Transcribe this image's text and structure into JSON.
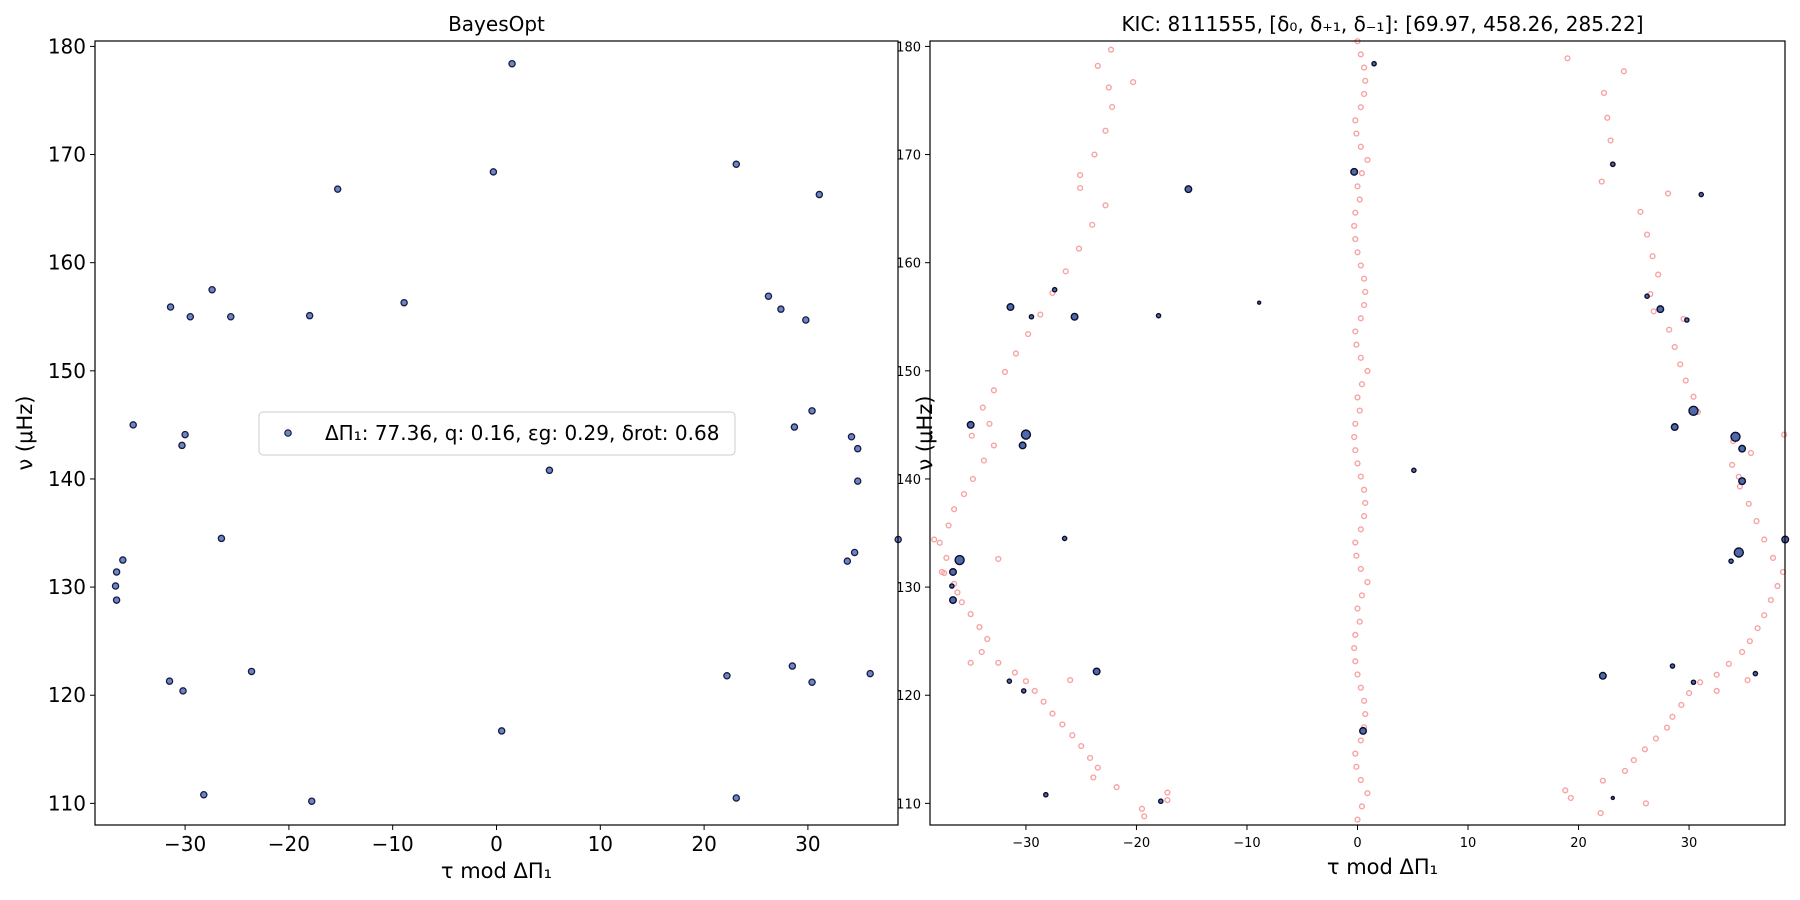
{
  "chart_data": [
    {
      "type": "scatter",
      "title": "BayesOpt",
      "xlabel": "τ mod ΔΠ₁",
      "ylabel": "ν (μHz)",
      "xlim": [
        -38.68,
        38.68
      ],
      "ylim": [
        108,
        180.5
      ],
      "xticks": [
        -30,
        -20,
        -10,
        0,
        10,
        20,
        30
      ],
      "xtick_labels": [
        "−30",
        "−20",
        "−10",
        "0",
        "10",
        "20",
        "30"
      ],
      "yticks": [
        110,
        120,
        130,
        140,
        150,
        160,
        170,
        180
      ],
      "ytick_labels": [
        "110",
        "120",
        "130",
        "140",
        "150",
        "160",
        "170",
        "180"
      ],
      "grid": false,
      "legend": {
        "placement": "center-left",
        "label": "ΔΠ₁: 77.36, q: 0.16, εg: 0.29, δrot: 0.68"
      },
      "colors": {
        "marker_fill": "#6b86c6",
        "marker_edge": "#1a1a40"
      },
      "series": [
        {
          "name": "ΔΠ₁: 77.36, q: 0.16, εg: 0.29, δrot: 0.68",
          "points": [
            [
              1.5,
              178.4
            ],
            [
              -15.3,
              166.8
            ],
            [
              -0.3,
              168.4
            ],
            [
              23.1,
              169.1
            ],
            [
              31.1,
              166.3
            ],
            [
              -27.4,
              157.5
            ],
            [
              -31.4,
              155.9
            ],
            [
              -29.5,
              155.0
            ],
            [
              -25.6,
              155.0
            ],
            [
              -18.0,
              155.1
            ],
            [
              -8.9,
              156.3
            ],
            [
              26.2,
              156.9
            ],
            [
              27.4,
              155.7
            ],
            [
              29.8,
              154.7
            ],
            [
              30.4,
              146.3
            ],
            [
              28.7,
              144.8
            ],
            [
              -35.0,
              145.0
            ],
            [
              -30.0,
              144.1
            ],
            [
              -30.3,
              143.1
            ],
            [
              5.1,
              140.8
            ],
            [
              34.2,
              143.9
            ],
            [
              34.8,
              142.8
            ],
            [
              34.8,
              139.8
            ],
            [
              38.7,
              134.4
            ],
            [
              34.5,
              133.2
            ],
            [
              33.8,
              132.4
            ],
            [
              -26.5,
              134.5
            ],
            [
              -36.0,
              132.5
            ],
            [
              -36.6,
              131.4
            ],
            [
              -36.7,
              130.1
            ],
            [
              -36.6,
              128.8
            ],
            [
              -23.6,
              122.2
            ],
            [
              -31.5,
              121.3
            ],
            [
              -30.2,
              120.4
            ],
            [
              0.5,
              116.7
            ],
            [
              22.2,
              121.8
            ],
            [
              28.5,
              122.7
            ],
            [
              30.4,
              121.2
            ],
            [
              36.0,
              122.0
            ],
            [
              -28.2,
              110.8
            ],
            [
              -17.8,
              110.2
            ],
            [
              23.1,
              110.5
            ]
          ]
        }
      ]
    },
    {
      "type": "scatter",
      "title": "KIC: 8111555, [δ₀, δ₊₁, δ₋₁]: [69.97, 458.26, 285.22]",
      "xlabel": "τ mod ΔΠ₁",
      "ylabel": "ν (μHz)",
      "xlim": [
        -38.68,
        38.68
      ],
      "ylim": [
        108,
        180.5
      ],
      "xticks": [
        -30,
        -20,
        -10,
        0,
        10,
        20,
        30
      ],
      "xtick_labels": [
        "−30",
        "−20",
        "−10",
        "0",
        "10",
        "20",
        "30"
      ],
      "yticks": [
        110,
        120,
        130,
        140,
        150,
        160,
        170,
        180
      ],
      "ytick_labels": [
        "110",
        "120",
        "130",
        "140",
        "150",
        "160",
        "170",
        "180"
      ],
      "grid": false,
      "colors": {
        "observed_fill": "#4e6aad",
        "observed_edge": "#0d0d2a",
        "model": "#f7a3a3"
      },
      "series": [
        {
          "name": "observed",
          "points": [
            [
              1.5,
              178.4,
              1
            ],
            [
              -15.3,
              166.8,
              2
            ],
            [
              -0.3,
              168.4,
              2
            ],
            [
              23.1,
              169.1,
              1
            ],
            [
              31.1,
              166.3,
              1
            ],
            [
              -27.4,
              157.5,
              1
            ],
            [
              -31.4,
              155.9,
              2
            ],
            [
              -29.5,
              155.0,
              1
            ],
            [
              -25.6,
              155.0,
              2
            ],
            [
              -18.0,
              155.1,
              1
            ],
            [
              -8.9,
              156.3,
              0.5
            ],
            [
              26.2,
              156.9,
              1
            ],
            [
              27.4,
              155.7,
              2
            ],
            [
              29.8,
              154.7,
              1
            ],
            [
              30.4,
              146.3,
              3
            ],
            [
              28.7,
              144.8,
              2
            ],
            [
              -35.0,
              145.0,
              2
            ],
            [
              -30.0,
              144.1,
              3
            ],
            [
              -30.3,
              143.1,
              2
            ],
            [
              5.1,
              140.8,
              1
            ],
            [
              34.2,
              143.9,
              3
            ],
            [
              34.8,
              142.8,
              2
            ],
            [
              34.8,
              139.8,
              2
            ],
            [
              38.7,
              134.4,
              2
            ],
            [
              34.5,
              133.2,
              3
            ],
            [
              33.8,
              132.4,
              1
            ],
            [
              -26.5,
              134.5,
              1
            ],
            [
              -36.0,
              132.5,
              3
            ],
            [
              -36.6,
              131.4,
              2
            ],
            [
              -36.7,
              130.1,
              1
            ],
            [
              -36.6,
              128.8,
              2
            ],
            [
              -23.6,
              122.2,
              2
            ],
            [
              -31.5,
              121.3,
              1
            ],
            [
              -30.2,
              120.4,
              1
            ],
            [
              0.5,
              116.7,
              2
            ],
            [
              22.2,
              121.8,
              2
            ],
            [
              28.5,
              122.7,
              1
            ],
            [
              30.4,
              121.2,
              1
            ],
            [
              36.0,
              122.0,
              1
            ],
            [
              -28.2,
              110.8,
              1
            ],
            [
              -17.8,
              110.2,
              1
            ],
            [
              23.1,
              110.5,
              0.5
            ]
          ]
        },
        {
          "name": "model",
          "center_x": [
            0.0,
            0.4,
            0.9,
            0.3,
            -0.1,
            -0.2,
            0.3,
            0.6,
            0.7,
            0.6,
            0.3,
            0.0,
            -0.2,
            -0.3,
            -0.2,
            0.2
          ],
          "center_y_start": 108.5,
          "center_y_step": 1.22,
          "center_count": 60,
          "left_points": [
            [
              -19.3,
              108.8
            ],
            [
              -19.5,
              109.5
            ],
            [
              -17.2,
              110.3
            ],
            [
              -17.2,
              111.0
            ],
            [
              -21.8,
              111.5
            ],
            [
              -23.9,
              112.4
            ],
            [
              -23.5,
              113.3
            ],
            [
              -24.2,
              114.2
            ],
            [
              -25.0,
              115.3
            ],
            [
              -25.8,
              116.3
            ],
            [
              -26.7,
              117.3
            ],
            [
              -27.6,
              118.3
            ],
            [
              -28.4,
              119.4
            ],
            [
              -29.2,
              120.4
            ],
            [
              -30.0,
              121.3
            ],
            [
              -26.0,
              121.4
            ],
            [
              -31.0,
              122.1
            ],
            [
              -32.5,
              123.0
            ],
            [
              -35.0,
              123.0
            ],
            [
              -34.0,
              124.0
            ],
            [
              -33.5,
              125.2
            ],
            [
              -34.2,
              126.3
            ],
            [
              -35.0,
              127.5
            ],
            [
              -35.8,
              128.6
            ],
            [
              -36.2,
              129.5
            ],
            [
              -36.5,
              130.3
            ],
            [
              -37.4,
              131.3
            ],
            [
              -37.6,
              131.4
            ],
            [
              -32.5,
              132.6
            ],
            [
              -37.2,
              132.7
            ],
            [
              -37.8,
              134.1
            ],
            [
              -38.3,
              134.4
            ],
            [
              -37.0,
              135.7
            ],
            [
              -36.5,
              137.2
            ],
            [
              -35.6,
              138.6
            ],
            [
              -34.8,
              140.0
            ],
            [
              -33.8,
              141.7
            ],
            [
              -32.9,
              143.1
            ],
            [
              -34.9,
              144.0
            ],
            [
              -35.0,
              145.1
            ],
            [
              -33.3,
              145.1
            ],
            [
              -33.9,
              146.6
            ],
            [
              -32.9,
              148.2
            ],
            [
              -31.9,
              149.9
            ],
            [
              -30.9,
              151.6
            ],
            [
              -29.8,
              153.4
            ],
            [
              -28.7,
              155.2
            ],
            [
              -27.6,
              157.2
            ],
            [
              -26.4,
              159.2
            ],
            [
              -25.2,
              161.3
            ],
            [
              -24.0,
              163.5
            ],
            [
              -22.8,
              165.3
            ],
            [
              -25.1,
              166.9
            ],
            [
              -25.1,
              168.1
            ],
            [
              -23.8,
              170.0
            ],
            [
              -22.8,
              172.2
            ],
            [
              -22.2,
              174.4
            ],
            [
              -22.5,
              176.2
            ],
            [
              -23.5,
              178.2
            ],
            [
              -20.3,
              176.7
            ],
            [
              -22.3,
              179.7
            ]
          ],
          "right_points": [
            [
              22.0,
              109.1
            ],
            [
              19.3,
              110.5
            ],
            [
              18.8,
              111.2
            ],
            [
              26.1,
              110.0
            ],
            [
              22.2,
              112.1
            ],
            [
              24.2,
              113.0
            ],
            [
              25.0,
              114.0
            ],
            [
              26.0,
              115.0
            ],
            [
              27.0,
              116.0
            ],
            [
              28.0,
              117.0
            ],
            [
              28.5,
              118.0
            ],
            [
              29.3,
              119.1
            ],
            [
              30.0,
              120.2
            ],
            [
              32.5,
              120.4
            ],
            [
              31.0,
              121.2
            ],
            [
              35.3,
              121.4
            ],
            [
              32.5,
              121.9
            ],
            [
              33.6,
              122.9
            ],
            [
              34.8,
              124.0
            ],
            [
              35.5,
              125.0
            ],
            [
              36.2,
              126.2
            ],
            [
              36.8,
              127.4
            ],
            [
              37.4,
              128.8
            ],
            [
              38.0,
              130.1
            ],
            [
              38.5,
              131.4
            ],
            [
              37.6,
              132.7
            ],
            [
              36.8,
              134.4
            ],
            [
              36.1,
              136.1
            ],
            [
              35.4,
              137.7
            ],
            [
              34.6,
              139.3
            ],
            [
              34.5,
              140.2
            ],
            [
              33.9,
              141.3
            ],
            [
              35.6,
              142.4
            ],
            [
              34.0,
              143.5
            ],
            [
              38.6,
              144.1
            ],
            [
              30.8,
              146.2
            ],
            [
              30.4,
              147.6
            ],
            [
              29.7,
              149.1
            ],
            [
              29.2,
              150.6
            ],
            [
              28.7,
              152.2
            ],
            [
              28.2,
              153.8
            ],
            [
              29.5,
              154.8
            ],
            [
              26.8,
              155.5
            ],
            [
              26.5,
              157.1
            ],
            [
              27.2,
              158.9
            ],
            [
              26.7,
              160.6
            ],
            [
              26.2,
              162.6
            ],
            [
              25.6,
              164.7
            ],
            [
              28.1,
              166.4
            ],
            [
              22.1,
              167.5
            ],
            [
              23.1,
              169.1
            ],
            [
              22.9,
              171.3
            ],
            [
              22.6,
              173.4
            ],
            [
              22.3,
              175.7
            ],
            [
              19.0,
              178.9
            ],
            [
              24.1,
              177.7
            ]
          ]
        }
      ]
    }
  ]
}
